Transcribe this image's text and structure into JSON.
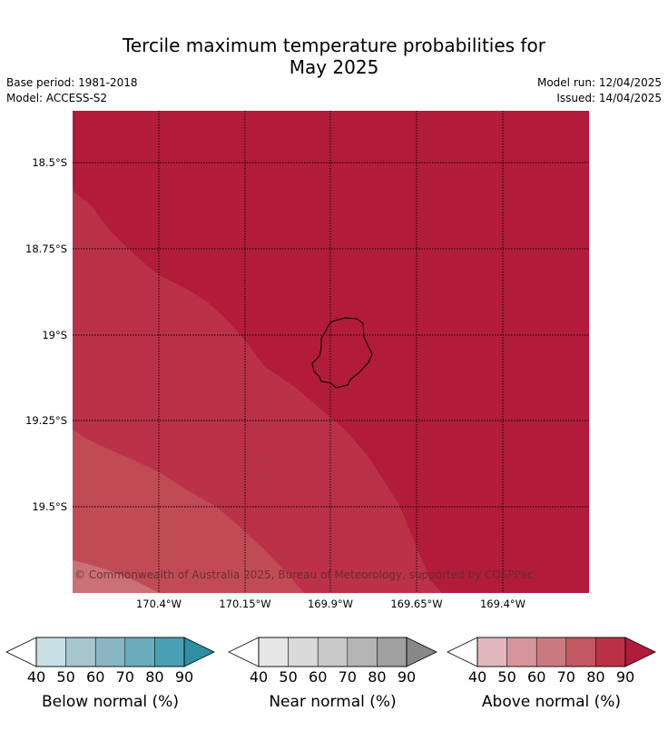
{
  "title_line1": "Tercile maximum temperature probabilities for",
  "title_line2": "May 2025",
  "base_period": "Base period: 1981-2018",
  "model": "Model: ACCESS-S2",
  "model_run": "Model run: 12/04/2025",
  "issued": "Issued: 14/04/2025",
  "copyright": "© Commonwealth of Australia 2025, Bureau of Meteorology, supported by COSPPac",
  "lat_labels": [
    "18.5°S",
    "18.75°S",
    "19°S",
    "19.25°S",
    "19.5°S"
  ],
  "lon_labels": [
    "170.4°W",
    "170.15°W",
    "169.9°W",
    "169.65°W",
    "169.4°W"
  ],
  "colorbars": [
    {
      "label": "Below normal (%)",
      "ticks": [
        "40",
        "50",
        "60",
        "70",
        "80",
        "90"
      ],
      "colors": [
        "#c8e0e6",
        "#a6c6cc",
        "#89b6c3",
        "#6aacbc",
        "#48a0b2"
      ],
      "over_color": "#2e8ea4"
    },
    {
      "label": "Near normal (%)",
      "ticks": [
        "40",
        "50",
        "60",
        "70",
        "80",
        "90"
      ],
      "colors": [
        "#e6e6e6",
        "#d9d9d9",
        "#c8c8c8",
        "#b4b4b4",
        "#a0a0a0"
      ],
      "over_color": "#888888"
    },
    {
      "label": "Above normal (%)",
      "ticks": [
        "40",
        "50",
        "60",
        "70",
        "80",
        "90"
      ],
      "colors": [
        "#e3b7bc",
        "#d6969d",
        "#cb7981",
        "#c25862",
        "#bb3248"
      ],
      "over_color": "#b21c3a"
    }
  ],
  "region_colors": {
    "above_90": "#b21c3a",
    "above_80_90": "#bb3248",
    "above_70_80": "#c14b55",
    "above_60_70": "#cb7176"
  }
}
